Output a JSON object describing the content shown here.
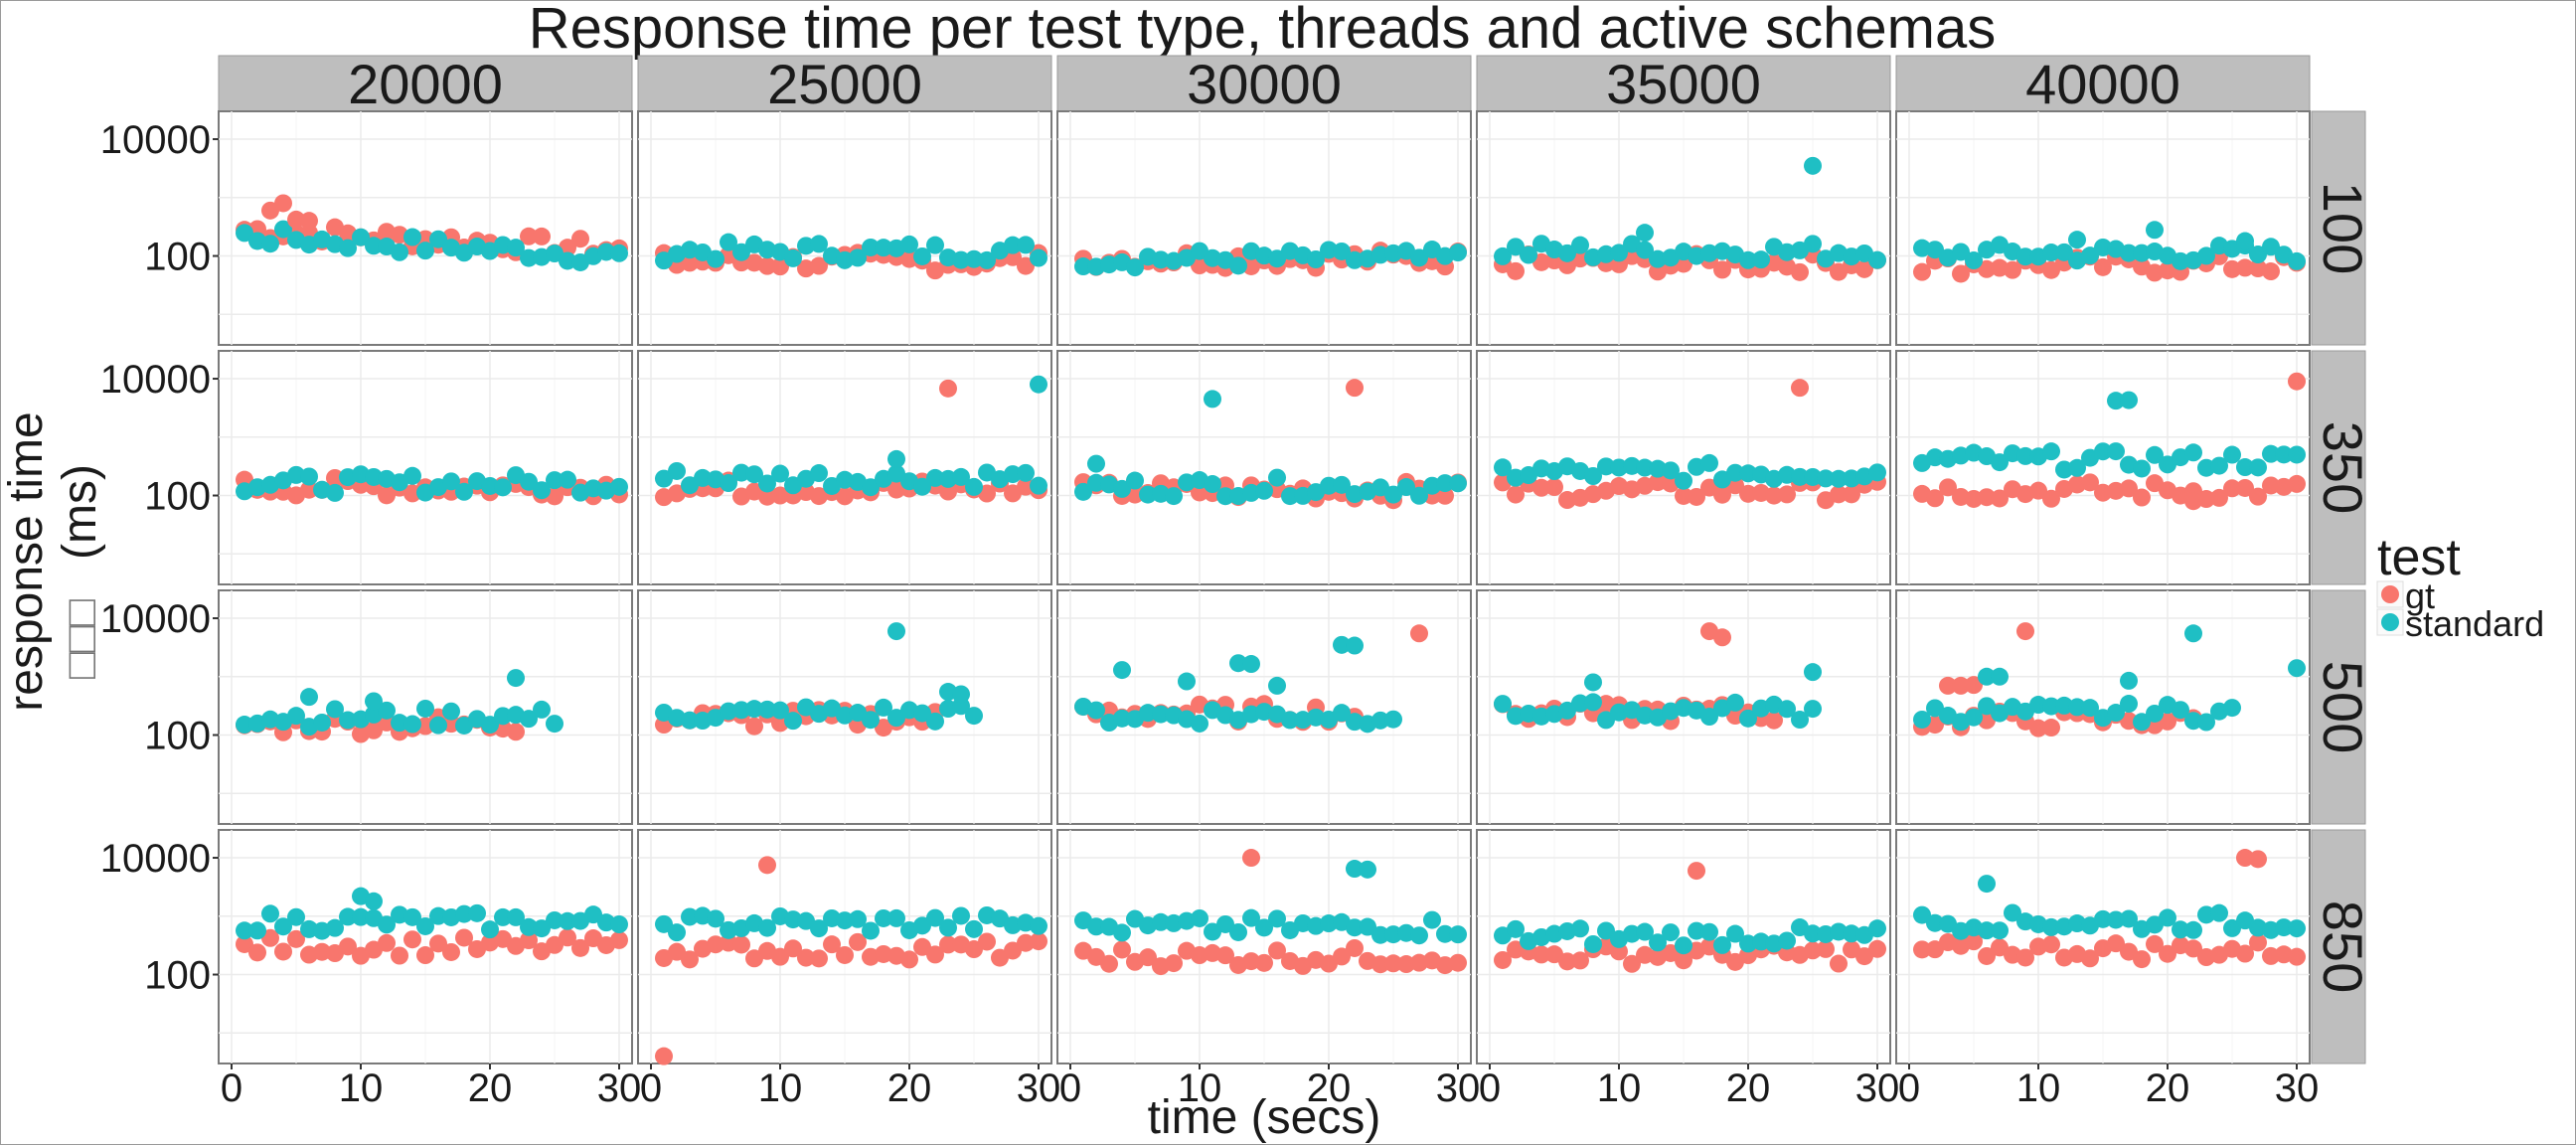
{
  "chart_data": {
    "type": "scatter",
    "title": "Response time per test type, threads and active schemas",
    "xlabel": "time (secs)",
    "ylabel": "response time",
    "ylabel_unit": "(ms)",
    "ylabel_garbled": "□□□",
    "y_scale": "log10",
    "ylim": [
      3,
      30000
    ],
    "xlim": [
      -1,
      31
    ],
    "x_ticks": [
      "0",
      "10",
      "20",
      "30"
    ],
    "y_ticks": [
      "100",
      "10000"
    ],
    "grid": true,
    "legend": {
      "title": "test",
      "position": "right",
      "entries": [
        "gt",
        "standard"
      ]
    },
    "colors": {
      "gt": "#F8766D",
      "standard": "#1FBFC4",
      "strip": "#bebebe",
      "panel_border": "#7a7a7a"
    },
    "column_facets": [
      "20000",
      "25000",
      "30000",
      "35000",
      "40000"
    ],
    "row_facets": [
      "100",
      "350",
      "500",
      "850"
    ],
    "outliers": [
      {
        "col": 0,
        "row": 0,
        "series": "gt",
        "points": [
          [
            3,
            600
          ],
          [
            4,
            800
          ],
          [
            5,
            420
          ],
          [
            6,
            400
          ]
        ]
      },
      {
        "col": 1,
        "row": 1,
        "series": "gt",
        "points": [
          [
            23,
            6800
          ]
        ]
      },
      {
        "col": 1,
        "row": 1,
        "series": "standard",
        "points": [
          [
            30,
            8000
          ]
        ]
      },
      {
        "col": 1,
        "row": 1,
        "series": "standard",
        "points": [
          [
            19,
            420
          ]
        ]
      },
      {
        "col": 2,
        "row": 1,
        "series": "standard",
        "points": [
          [
            11,
            4500
          ],
          [
            2,
            350
          ]
        ]
      },
      {
        "col": 2,
        "row": 1,
        "series": "gt",
        "points": [
          [
            22,
            7000
          ]
        ]
      },
      {
        "col": 3,
        "row": 1,
        "series": "gt",
        "points": [
          [
            24,
            7000
          ]
        ]
      },
      {
        "col": 4,
        "row": 1,
        "series": "gt",
        "points": [
          [
            30,
            9000
          ],
          [
            22,
            80
          ]
        ]
      },
      {
        "col": 4,
        "row": 1,
        "series": "standard",
        "points": [
          [
            16,
            4200
          ],
          [
            17,
            4300
          ]
        ]
      },
      {
        "col": 3,
        "row": 0,
        "series": "standard",
        "points": [
          [
            25,
            3500
          ],
          [
            12,
            250
          ]
        ]
      },
      {
        "col": 4,
        "row": 0,
        "series": "standard",
        "points": [
          [
            19,
            280
          ],
          [
            13,
            190
          ],
          [
            26,
            180
          ]
        ]
      },
      {
        "col": 0,
        "row": 2,
        "series": "standard",
        "points": [
          [
            22,
            950
          ],
          [
            6,
            450
          ],
          [
            11,
            380
          ]
        ]
      },
      {
        "col": 1,
        "row": 2,
        "series": "standard",
        "points": [
          [
            19,
            6000
          ],
          [
            23,
            550
          ],
          [
            24,
            500
          ]
        ]
      },
      {
        "col": 2,
        "row": 2,
        "series": "standard",
        "points": [
          [
            13,
            1700
          ],
          [
            14,
            1650
          ],
          [
            21,
            3500
          ],
          [
            22,
            3400
          ],
          [
            4,
            1300
          ],
          [
            9,
            830
          ],
          [
            16,
            700
          ]
        ]
      },
      {
        "col": 2,
        "row": 2,
        "series": "gt",
        "points": [
          [
            27,
            5500
          ]
        ]
      },
      {
        "col": 3,
        "row": 2,
        "series": "gt",
        "points": [
          [
            17,
            6000
          ],
          [
            18,
            4700
          ]
        ]
      },
      {
        "col": 3,
        "row": 2,
        "series": "standard",
        "points": [
          [
            8,
            800
          ],
          [
            25,
            1200
          ]
        ]
      },
      {
        "col": 4,
        "row": 2,
        "series": "gt",
        "points": [
          [
            9,
            6000
          ],
          [
            3,
            700
          ],
          [
            4,
            700
          ],
          [
            5,
            720
          ]
        ]
      },
      {
        "col": 4,
        "row": 2,
        "series": "standard",
        "points": [
          [
            22,
            5500
          ],
          [
            30,
            1400
          ],
          [
            6,
            1000
          ],
          [
            7,
            1000
          ],
          [
            17,
            850
          ]
        ]
      },
      {
        "col": 0,
        "row": 3,
        "series": "standard",
        "points": [
          [
            10,
            2200
          ],
          [
            11,
            1800
          ]
        ]
      },
      {
        "col": 1,
        "row": 3,
        "series": "gt",
        "points": [
          [
            9,
            7500
          ],
          [
            1,
            4
          ]
        ]
      },
      {
        "col": 2,
        "row": 3,
        "series": "gt",
        "points": [
          [
            14,
            10000
          ]
        ]
      },
      {
        "col": 2,
        "row": 3,
        "series": "standard",
        "points": [
          [
            22,
            6500
          ],
          [
            23,
            6300
          ]
        ]
      },
      {
        "col": 3,
        "row": 3,
        "series": "gt",
        "points": [
          [
            16,
            6000
          ]
        ]
      },
      {
        "col": 4,
        "row": 3,
        "series": "gt",
        "points": [
          [
            26,
            10000
          ],
          [
            27,
            9500
          ]
        ]
      },
      {
        "col": 4,
        "row": 3,
        "series": "standard",
        "points": [
          [
            6,
            3600
          ]
        ]
      }
    ],
    "baselines": {
      "gt": [
        [
          130,
          80,
          90,
          75,
          70
        ],
        [
          140,
          130,
          120,
          120,
          120
        ],
        [
          150,
          190,
          240,
          240,
          180
        ],
        [
          300,
          260,
          200,
          220,
          260
        ]
      ],
      "standard": [
        [
          100,
          120,
          90,
          120,
          110
        ],
        [
          160,
          200,
          140,
          250,
          400
        ],
        [
          200,
          230,
          220,
          260,
          240
        ],
        [
          800,
          750,
          650,
          450,
          800
        ]
      ]
    },
    "series_ranges": {
      "gt": [
        [
          [
            1,
            30
          ]
        ],
        [
          [
            1,
            30
          ]
        ],
        [
          [
            1,
            22
          ]
        ],
        [
          [
            1,
            30
          ]
        ]
      ],
      "standard": [
        [
          [
            1,
            30
          ]
        ],
        [
          [
            1,
            30
          ]
        ],
        [
          [
            1,
            25
          ]
        ],
        [
          [
            1,
            30
          ]
        ]
      ]
    }
  }
}
